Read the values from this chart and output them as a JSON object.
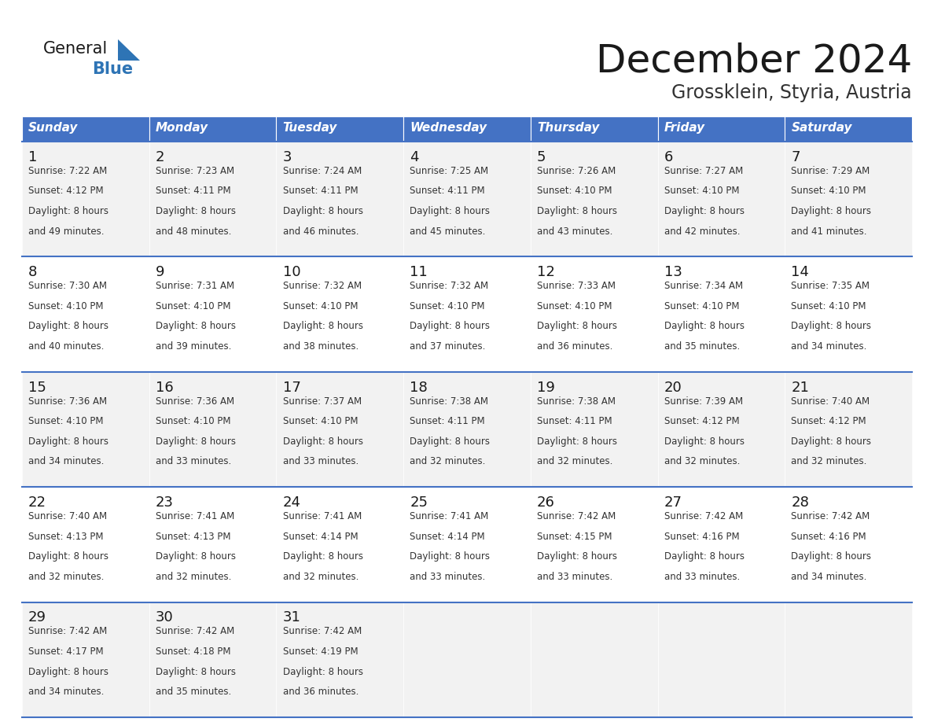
{
  "title": "December 2024",
  "subtitle": "Grossklein, Styria, Austria",
  "header_bg_color": "#4472C4",
  "header_text_color": "#FFFFFF",
  "day_names": [
    "Sunday",
    "Monday",
    "Tuesday",
    "Wednesday",
    "Thursday",
    "Friday",
    "Saturday"
  ],
  "row_bg_even": "#F2F2F2",
  "row_bg_odd": "#FFFFFF",
  "cell_text_color": "#333333",
  "day_num_color": "#1a1a1a",
  "border_color": "#4472C4",
  "title_color": "#1a1a1a",
  "subtitle_color": "#333333",
  "logo_general_color": "#1a1a1a",
  "logo_blue_color": "#2E74B5",
  "weeks": [
    [
      {
        "day": 1,
        "sunrise": "7:22 AM",
        "sunset": "4:12 PM",
        "daylight_min": "and 49 minutes."
      },
      {
        "day": 2,
        "sunrise": "7:23 AM",
        "sunset": "4:11 PM",
        "daylight_min": "and 48 minutes."
      },
      {
        "day": 3,
        "sunrise": "7:24 AM",
        "sunset": "4:11 PM",
        "daylight_min": "and 46 minutes."
      },
      {
        "day": 4,
        "sunrise": "7:25 AM",
        "sunset": "4:11 PM",
        "daylight_min": "and 45 minutes."
      },
      {
        "day": 5,
        "sunrise": "7:26 AM",
        "sunset": "4:10 PM",
        "daylight_min": "and 43 minutes."
      },
      {
        "day": 6,
        "sunrise": "7:27 AM",
        "sunset": "4:10 PM",
        "daylight_min": "and 42 minutes."
      },
      {
        "day": 7,
        "sunrise": "7:29 AM",
        "sunset": "4:10 PM",
        "daylight_min": "and 41 minutes."
      }
    ],
    [
      {
        "day": 8,
        "sunrise": "7:30 AM",
        "sunset": "4:10 PM",
        "daylight_min": "and 40 minutes."
      },
      {
        "day": 9,
        "sunrise": "7:31 AM",
        "sunset": "4:10 PM",
        "daylight_min": "and 39 minutes."
      },
      {
        "day": 10,
        "sunrise": "7:32 AM",
        "sunset": "4:10 PM",
        "daylight_min": "and 38 minutes."
      },
      {
        "day": 11,
        "sunrise": "7:32 AM",
        "sunset": "4:10 PM",
        "daylight_min": "and 37 minutes."
      },
      {
        "day": 12,
        "sunrise": "7:33 AM",
        "sunset": "4:10 PM",
        "daylight_min": "and 36 minutes."
      },
      {
        "day": 13,
        "sunrise": "7:34 AM",
        "sunset": "4:10 PM",
        "daylight_min": "and 35 minutes."
      },
      {
        "day": 14,
        "sunrise": "7:35 AM",
        "sunset": "4:10 PM",
        "daylight_min": "and 34 minutes."
      }
    ],
    [
      {
        "day": 15,
        "sunrise": "7:36 AM",
        "sunset": "4:10 PM",
        "daylight_min": "and 34 minutes."
      },
      {
        "day": 16,
        "sunrise": "7:36 AM",
        "sunset": "4:10 PM",
        "daylight_min": "and 33 minutes."
      },
      {
        "day": 17,
        "sunrise": "7:37 AM",
        "sunset": "4:10 PM",
        "daylight_min": "and 33 minutes."
      },
      {
        "day": 18,
        "sunrise": "7:38 AM",
        "sunset": "4:11 PM",
        "daylight_min": "and 32 minutes."
      },
      {
        "day": 19,
        "sunrise": "7:38 AM",
        "sunset": "4:11 PM",
        "daylight_min": "and 32 minutes."
      },
      {
        "day": 20,
        "sunrise": "7:39 AM",
        "sunset": "4:12 PM",
        "daylight_min": "and 32 minutes."
      },
      {
        "day": 21,
        "sunrise": "7:40 AM",
        "sunset": "4:12 PM",
        "daylight_min": "and 32 minutes."
      }
    ],
    [
      {
        "day": 22,
        "sunrise": "7:40 AM",
        "sunset": "4:13 PM",
        "daylight_min": "and 32 minutes."
      },
      {
        "day": 23,
        "sunrise": "7:41 AM",
        "sunset": "4:13 PM",
        "daylight_min": "and 32 minutes."
      },
      {
        "day": 24,
        "sunrise": "7:41 AM",
        "sunset": "4:14 PM",
        "daylight_min": "and 32 minutes."
      },
      {
        "day": 25,
        "sunrise": "7:41 AM",
        "sunset": "4:14 PM",
        "daylight_min": "and 33 minutes."
      },
      {
        "day": 26,
        "sunrise": "7:42 AM",
        "sunset": "4:15 PM",
        "daylight_min": "and 33 minutes."
      },
      {
        "day": 27,
        "sunrise": "7:42 AM",
        "sunset": "4:16 PM",
        "daylight_min": "and 33 minutes."
      },
      {
        "day": 28,
        "sunrise": "7:42 AM",
        "sunset": "4:16 PM",
        "daylight_min": "and 34 minutes."
      }
    ],
    [
      {
        "day": 29,
        "sunrise": "7:42 AM",
        "sunset": "4:17 PM",
        "daylight_min": "and 34 minutes."
      },
      {
        "day": 30,
        "sunrise": "7:42 AM",
        "sunset": "4:18 PM",
        "daylight_min": "and 35 minutes."
      },
      {
        "day": 31,
        "sunrise": "7:42 AM",
        "sunset": "4:19 PM",
        "daylight_min": "and 36 minutes."
      },
      null,
      null,
      null,
      null
    ]
  ]
}
